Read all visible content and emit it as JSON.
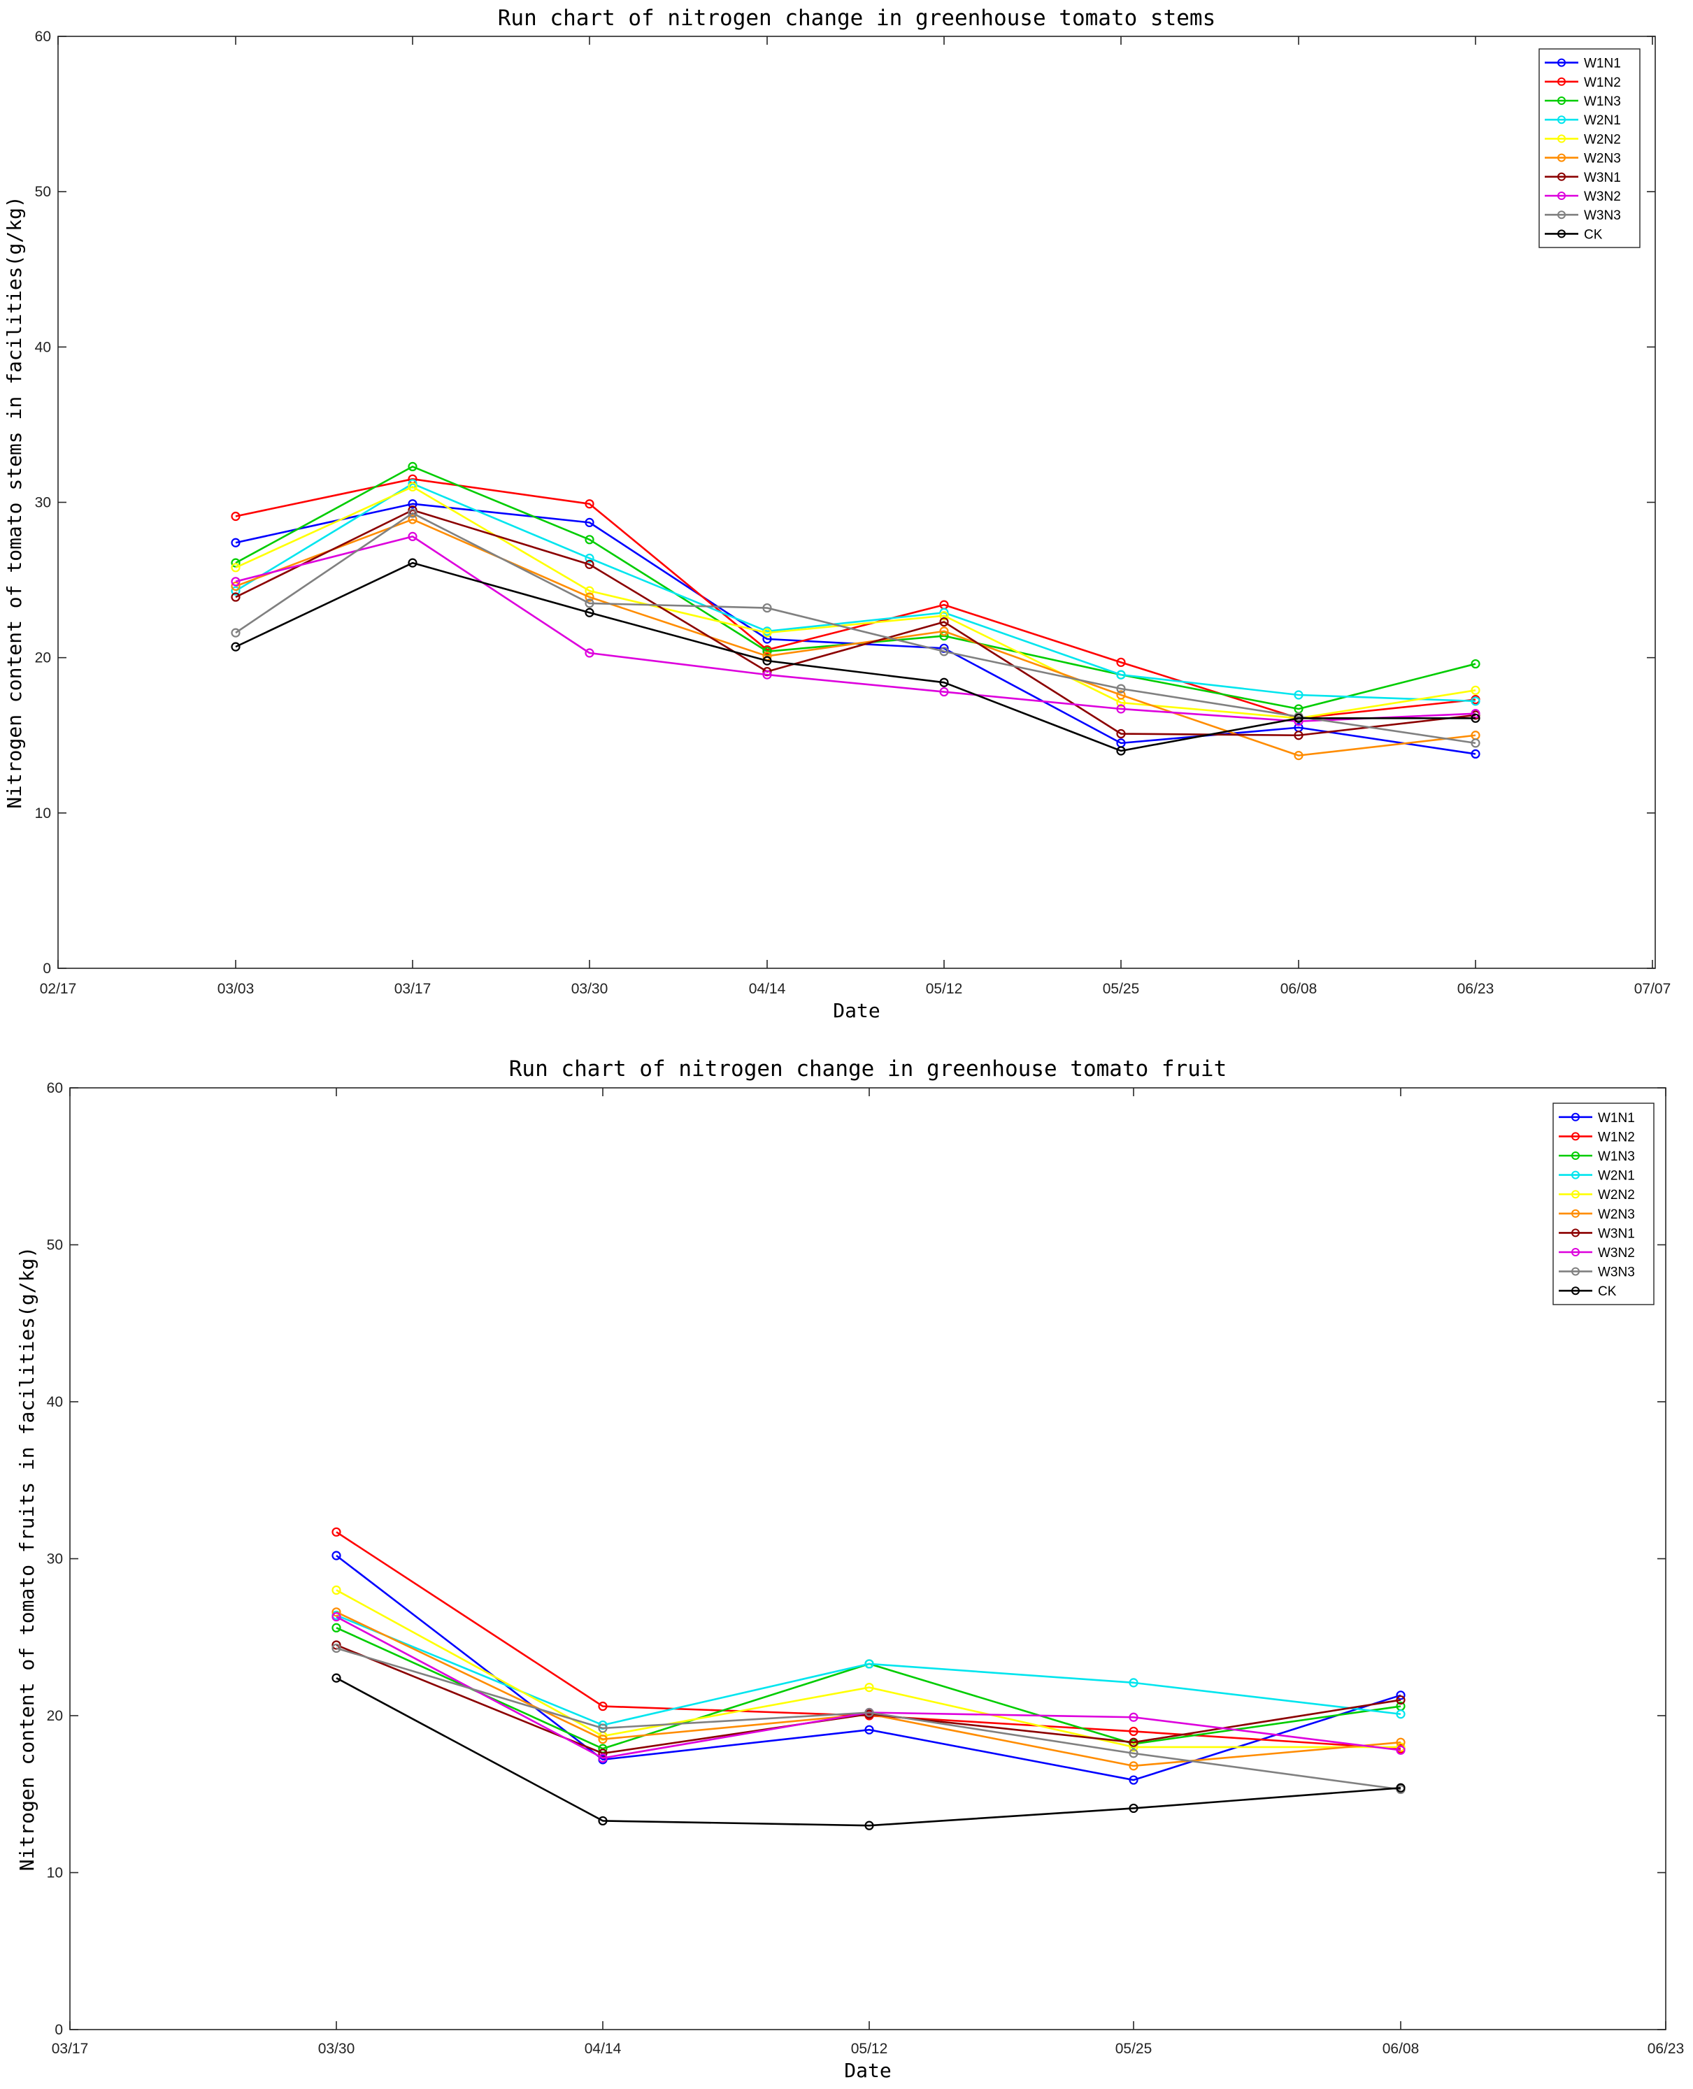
{
  "colors": {
    "W1N1": "#0000ff",
    "W1N2": "#ff0000",
    "W1N3": "#00cc00",
    "W2N1": "#00e5ee",
    "W2N2": "#ffff00",
    "W2N3": "#ff8c00",
    "W3N1": "#8b0000",
    "W3N2": "#dd00dd",
    "W3N3": "#808080",
    "CK": "#000000"
  },
  "chart_data": [
    {
      "type": "line",
      "title": "Run chart of nitrogen change in greenhouse tomato stems",
      "xlabel": "Date",
      "ylabel": "Nitrogen content of tomato stems in facilities(g/kg)",
      "ylim": [
        0,
        60
      ],
      "yticks": [
        0,
        10,
        20,
        30,
        40,
        50,
        60
      ],
      "xticks": [
        "02/17",
        "03/03",
        "03/17",
        "03/30",
        "04/14",
        "05/12",
        "05/25",
        "06/08",
        "06/23",
        "07/07"
      ],
      "categories": [
        "03/03",
        "03/17",
        "03/30",
        "04/14",
        "05/12",
        "05/25",
        "06/08",
        "06/23"
      ],
      "legend_position": "top-right",
      "series": [
        {
          "name": "W1N1",
          "values": [
            27.4,
            29.9,
            28.7,
            21.2,
            20.6,
            14.5,
            15.5,
            13.8
          ]
        },
        {
          "name": "W1N2",
          "values": [
            29.1,
            31.5,
            29.9,
            20.5,
            23.4,
            19.7,
            16.1,
            17.3
          ]
        },
        {
          "name": "W1N3",
          "values": [
            26.1,
            32.3,
            27.6,
            20.4,
            21.4,
            18.9,
            16.7,
            19.6
          ]
        },
        {
          "name": "W2N1",
          "values": [
            24.3,
            31.2,
            26.4,
            21.7,
            22.9,
            18.9,
            17.6,
            17.2
          ]
        },
        {
          "name": "W2N2",
          "values": [
            25.8,
            31.0,
            24.3,
            21.6,
            22.7,
            17.1,
            16.1,
            17.9
          ]
        },
        {
          "name": "W2N3",
          "values": [
            24.6,
            28.9,
            23.9,
            20.1,
            21.7,
            17.6,
            13.7,
            15.0
          ]
        },
        {
          "name": "W3N1",
          "values": [
            23.9,
            29.5,
            26.0,
            19.1,
            22.3,
            15.1,
            15.0,
            16.3
          ]
        },
        {
          "name": "W3N2",
          "values": [
            24.9,
            27.8,
            20.3,
            18.9,
            17.8,
            16.7,
            15.9,
            16.4
          ]
        },
        {
          "name": "W3N3",
          "values": [
            21.6,
            29.3,
            23.5,
            23.2,
            20.4,
            18.0,
            16.2,
            14.5
          ]
        },
        {
          "name": "CK",
          "values": [
            20.7,
            26.1,
            22.9,
            19.8,
            18.4,
            14.0,
            16.1,
            16.1
          ]
        }
      ]
    },
    {
      "type": "line",
      "title": "Run chart of nitrogen change in greenhouse tomato fruit",
      "xlabel": "Date",
      "ylabel": "Nitrogen content of tomato fruits in facilities(g/kg)",
      "ylim": [
        0,
        60
      ],
      "yticks": [
        0,
        10,
        20,
        30,
        40,
        50,
        60
      ],
      "xticks": [
        "03/17",
        "03/30",
        "04/14",
        "05/12",
        "05/25",
        "06/08",
        "06/23"
      ],
      "categories": [
        "03/30",
        "04/14",
        "05/12",
        "05/25",
        "06/08"
      ],
      "legend_position": "top-right",
      "series": [
        {
          "name": "W1N1",
          "values": [
            30.2,
            17.2,
            19.1,
            15.9,
            21.3
          ]
        },
        {
          "name": "W1N2",
          "values": [
            31.7,
            20.6,
            20.0,
            19.0,
            17.9
          ]
        },
        {
          "name": "W1N3",
          "values": [
            25.6,
            17.9,
            23.3,
            18.2,
            20.6
          ]
        },
        {
          "name": "W2N1",
          "values": [
            26.4,
            19.4,
            23.3,
            22.1,
            20.1
          ]
        },
        {
          "name": "W2N2",
          "values": [
            28.0,
            18.7,
            21.8,
            18.0,
            18.0
          ]
        },
        {
          "name": "W2N3",
          "values": [
            26.6,
            18.5,
            20.1,
            16.8,
            18.3
          ]
        },
        {
          "name": "W3N1",
          "values": [
            24.5,
            17.6,
            20.1,
            18.3,
            21.0
          ]
        },
        {
          "name": "W3N2",
          "values": [
            26.3,
            17.3,
            20.2,
            19.9,
            17.8
          ]
        },
        {
          "name": "W3N3",
          "values": [
            24.3,
            19.2,
            20.2,
            17.6,
            15.3
          ]
        },
        {
          "name": "CK",
          "values": [
            22.4,
            13.3,
            13.0,
            14.1,
            15.4
          ]
        }
      ]
    }
  ]
}
